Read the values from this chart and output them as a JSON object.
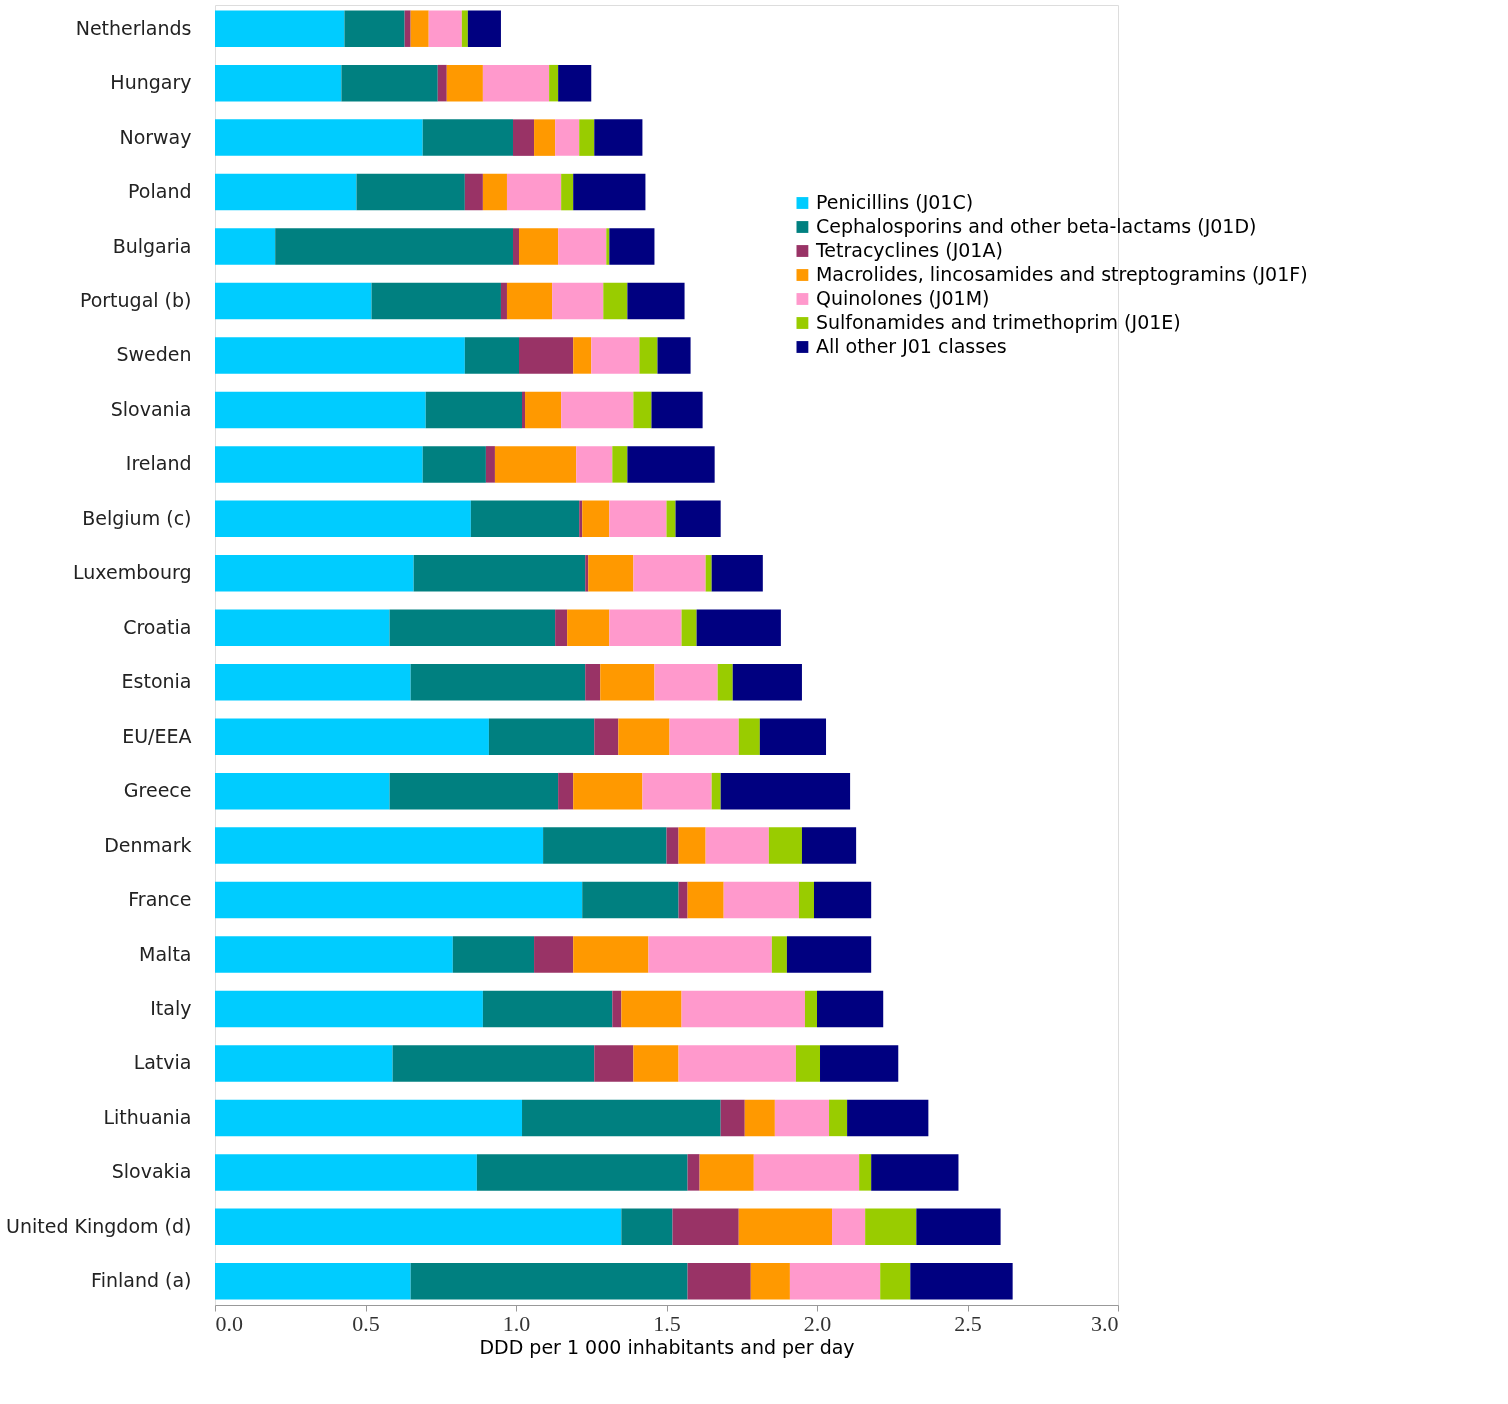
{
  "chart_data": {
    "type": "bar",
    "orientation": "horizontal",
    "stacked": true,
    "xlabel": "DDD per 1 000 inhabitants and per day",
    "categories": [
      "Netherlands",
      "Hungary",
      "Norway",
      "Poland",
      "Bulgaria",
      "Portugal (b)",
      "Sweden",
      "Slovania",
      "Ireland",
      "Belgium (c)",
      "Luxembourg",
      "Croatia",
      "Estonia",
      "EU/EEA",
      "Greece",
      "Denmark",
      "France",
      "Malta",
      "Italy",
      "Latvia",
      "Lithuania",
      "Slovakia",
      "United Kingdom (d)",
      "Finland (a)"
    ],
    "series": [
      {
        "name": "Penicillins (J01C)",
        "color": "#00ccff",
        "values": [
          0.43,
          0.42,
          0.69,
          0.47,
          0.2,
          0.52,
          0.83,
          0.7,
          0.69,
          0.85,
          0.66,
          0.58,
          0.65,
          0.91,
          0.58,
          1.09,
          1.22,
          0.79,
          0.89,
          0.59,
          1.02,
          0.87,
          1.35,
          0.65
        ]
      },
      {
        "name": "Cephalosporins and other beta-lactams (J01D)",
        "color": "#008080",
        "values": [
          0.2,
          0.32,
          0.3,
          0.36,
          0.79,
          0.43,
          0.18,
          0.32,
          0.21,
          0.36,
          0.57,
          0.55,
          0.58,
          0.35,
          0.56,
          0.41,
          0.32,
          0.27,
          0.43,
          0.67,
          0.66,
          0.7,
          0.17,
          0.92
        ]
      },
      {
        "name": "Tetracyclines (J01A)",
        "color": "#993366",
        "values": [
          0.02,
          0.03,
          0.07,
          0.06,
          0.02,
          0.02,
          0.18,
          0.01,
          0.03,
          0.01,
          0.01,
          0.04,
          0.05,
          0.08,
          0.05,
          0.04,
          0.03,
          0.13,
          0.03,
          0.13,
          0.08,
          0.04,
          0.22,
          0.21
        ]
      },
      {
        "name": "Macrolides, lincosamides and streptogramins (J01F)",
        "color": "#ff9900",
        "values": [
          0.06,
          0.12,
          0.07,
          0.08,
          0.13,
          0.15,
          0.06,
          0.12,
          0.27,
          0.09,
          0.15,
          0.14,
          0.18,
          0.17,
          0.23,
          0.09,
          0.12,
          0.25,
          0.2,
          0.15,
          0.1,
          0.18,
          0.31,
          0.13
        ]
      },
      {
        "name": "Quinolones (J01M)",
        "color": "#ff99cc",
        "values": [
          0.11,
          0.22,
          0.08,
          0.18,
          0.16,
          0.17,
          0.16,
          0.24,
          0.12,
          0.19,
          0.24,
          0.24,
          0.21,
          0.23,
          0.23,
          0.21,
          0.25,
          0.41,
          0.41,
          0.39,
          0.18,
          0.35,
          0.11,
          0.3
        ]
      },
      {
        "name": "Sulfonamides and trimethoprim (J01E)",
        "color": "#99cc00",
        "values": [
          0.02,
          0.03,
          0.05,
          0.04,
          0.01,
          0.08,
          0.06,
          0.06,
          0.05,
          0.03,
          0.02,
          0.05,
          0.05,
          0.07,
          0.03,
          0.11,
          0.05,
          0.05,
          0.04,
          0.08,
          0.06,
          0.04,
          0.17,
          0.1
        ]
      },
      {
        "name": "All other J01 classes",
        "color": "#000080",
        "values": [
          0.11,
          0.11,
          0.16,
          0.24,
          0.15,
          0.19,
          0.11,
          0.17,
          0.29,
          0.15,
          0.17,
          0.28,
          0.23,
          0.22,
          0.43,
          0.18,
          0.19,
          0.28,
          0.22,
          0.26,
          0.27,
          0.29,
          0.28,
          0.34
        ]
      }
    ],
    "xlim": [
      0,
      3.0
    ],
    "xticks": [
      {
        "value": 0,
        "label": "0.0"
      },
      {
        "value": 0.5,
        "label": "0.5"
      },
      {
        "value": 1.0,
        "label": "1.0"
      },
      {
        "value": 1.5,
        "label": "1.5"
      },
      {
        "value": 2.0,
        "label": "2.0"
      },
      {
        "value": 2.5,
        "label": "2.5"
      },
      {
        "value": 3.0,
        "label": "3.0"
      }
    ],
    "grid": false,
    "legend": "top right"
  }
}
